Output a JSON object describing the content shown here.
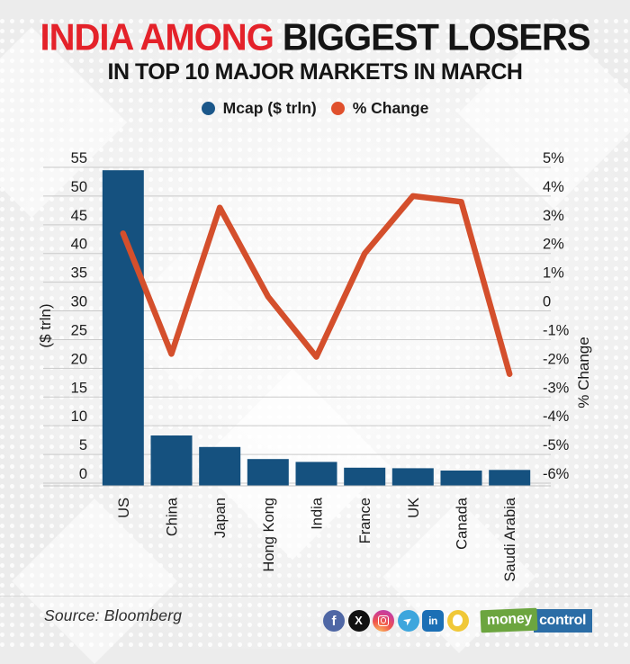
{
  "header": {
    "title_highlight": "INDIA AMONG",
    "title_rest": " BIGGEST LOSERS",
    "subtitle": "IN TOP 10 MAJOR MARKETS IN MARCH"
  },
  "legend": [
    {
      "label": "Mcap ($ trln)",
      "color": "#1b578a"
    },
    {
      "label": "% Change",
      "color": "#e0502d"
    }
  ],
  "chart_data": {
    "type": "bar+line combo",
    "categories": [
      "US",
      "China",
      "Japan",
      "Hong Kong",
      "India",
      "France",
      "UK",
      "Canada",
      "Saudi Arabia"
    ],
    "series": [
      {
        "name": "Mcap ($ trln)",
        "type": "bar",
        "axis": "left",
        "color": "#15517f",
        "values": [
          54.5,
          8.3,
          6.3,
          4.2,
          3.7,
          2.7,
          2.6,
          2.2,
          2.3
        ]
      },
      {
        "name": "% Change",
        "type": "line",
        "axis": "right",
        "color": "#d44f2c",
        "values": [
          2.7,
          -1.5,
          3.6,
          0.5,
          -1.6,
          2.0,
          4.0,
          3.8,
          -2.2
        ]
      }
    ],
    "left_axis": {
      "label": "($ trln)",
      "min": 0,
      "max": 55,
      "ticks": [
        "55",
        "50",
        "45",
        "40",
        "35",
        "30",
        "25",
        "20",
        "15",
        "10",
        "5",
        "0"
      ]
    },
    "right_axis": {
      "label": "% Change",
      "min": -6,
      "max": 5,
      "ticks": [
        "5%",
        "4%",
        "3%",
        "2%",
        "1%",
        "0",
        "-1%",
        "-2%",
        "-3%",
        "-4%",
        "-5%",
        "-6%"
      ]
    },
    "grid": true,
    "gridline_color": "#c9c9c9",
    "legend_position": "top"
  },
  "footer": {
    "source": "Source: Bloomberg",
    "icons": [
      {
        "name": "facebook",
        "color": "#4f67a5"
      },
      {
        "name": "x-twitter",
        "color": "#111111"
      },
      {
        "name": "instagram",
        "color": "radial-gradient(circle at 30% 110%, #fdc55f 0%, #f0564a 45%, #cf3d92 75%, #b14dbb 100%)"
      },
      {
        "name": "telegram",
        "color": "#3da6dd"
      },
      {
        "name": "linkedin",
        "color": "#1b6fb5"
      },
      {
        "name": "koo",
        "color": "#f0c838"
      }
    ],
    "logo": {
      "part1": "money",
      "part2": "control",
      "green": "#6ca53f",
      "blue": "#2b6da6"
    }
  }
}
